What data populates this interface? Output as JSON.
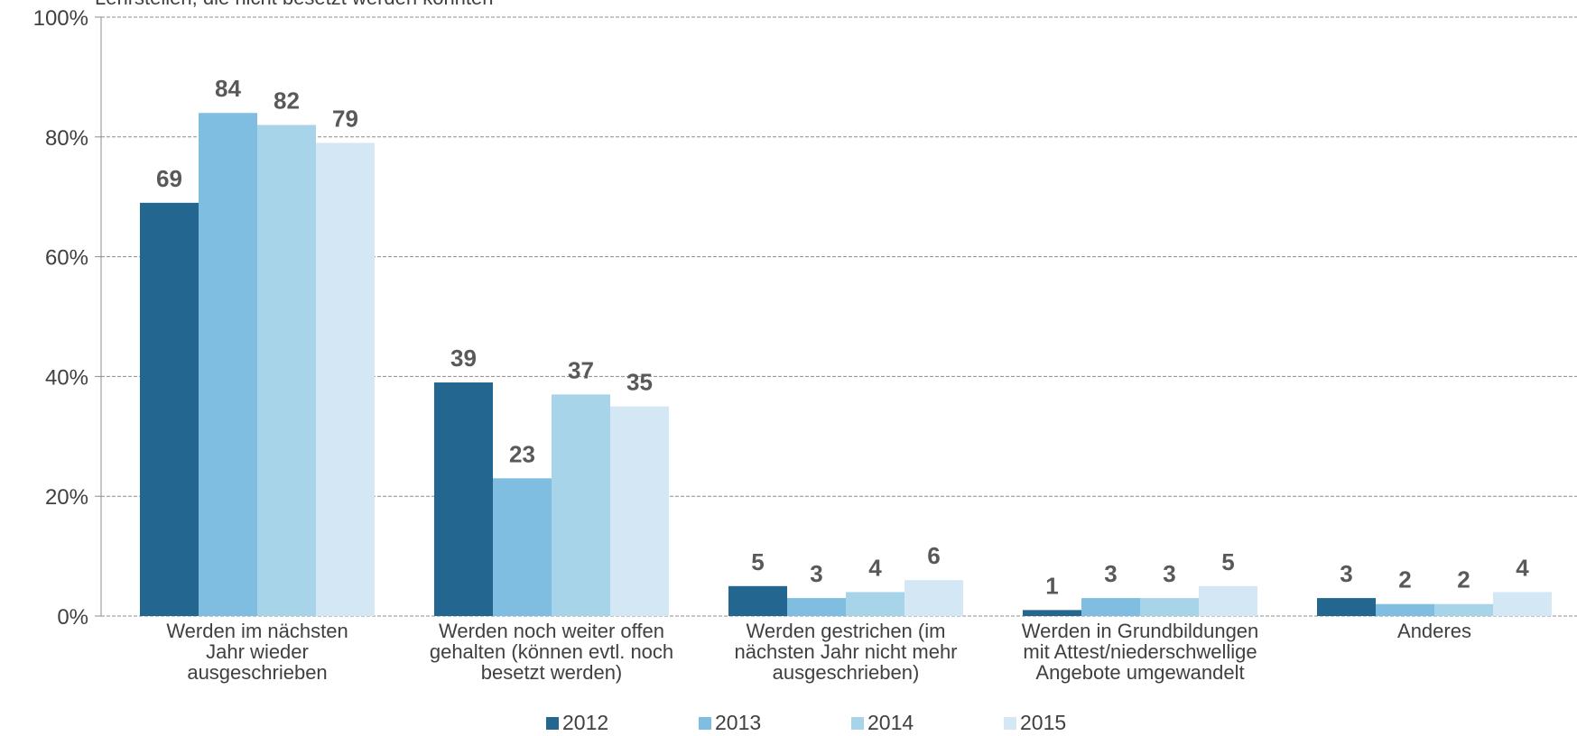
{
  "chart_data": {
    "type": "bar",
    "title": "Lehrstellen, die nicht besetzt werden konnten",
    "xlabel": "",
    "ylabel": "",
    "ylim": [
      0,
      100
    ],
    "y_ticks": [
      "0%",
      "20%",
      "40%",
      "60%",
      "80%",
      "100%"
    ],
    "categories": [
      "Werden im nächsten Jahr wieder ausgeschrieben",
      "Werden noch weiter offen gehalten (können evtl. noch besetzt werden)",
      "Werden gestrichen (im nächsten Jahr nicht mehr ausgeschrieben)",
      "Werden in Grundbildungen mit Attest/niederschwellige Angebote umgewandelt",
      "Anderes"
    ],
    "category_lines": [
      [
        "Werden im nächsten",
        "Jahr wieder",
        "ausgeschrieben"
      ],
      [
        "Werden noch weiter offen",
        "gehalten (können evtl. noch",
        "besetzt werden)"
      ],
      [
        "Werden gestrichen (im",
        "nächsten Jahr nicht mehr",
        "ausgeschrieben)"
      ],
      [
        "Werden in Grundbildungen",
        "mit Attest/niederschwellige",
        "Angebote umgewandelt"
      ],
      [
        "Anderes"
      ]
    ],
    "series": [
      {
        "name": "2012",
        "color": "#236790",
        "values": [
          69,
          39,
          5,
          1,
          3
        ]
      },
      {
        "name": "2013",
        "color": "#7fbee1",
        "values": [
          84,
          23,
          3,
          3,
          2
        ]
      },
      {
        "name": "2014",
        "color": "#a8d4ea",
        "values": [
          82,
          37,
          4,
          3,
          2
        ]
      },
      {
        "name": "2015",
        "color": "#d3e8f4",
        "values": [
          79,
          35,
          6,
          5,
          4
        ]
      }
    ],
    "grid": true,
    "legend_position": "bottom"
  }
}
